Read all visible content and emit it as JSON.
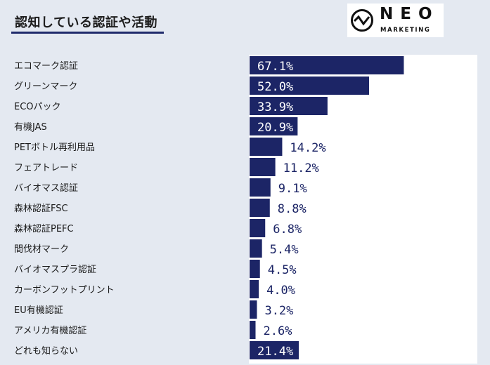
{
  "header": {
    "title": "認知している認証や活動"
  },
  "logo": {
    "brand": "NEO",
    "subtitle": "MARKETING"
  },
  "colors": {
    "bar": "#1c2566",
    "background": "#e4e9f1",
    "plot_background": "#ffffff",
    "label_inside": "#ffffff",
    "label_outside": "#1c2566"
  },
  "chart_data": {
    "type": "bar",
    "orientation": "horizontal",
    "categories": [
      "エコマーク認証",
      "グリーンマーク",
      "ECOパック",
      "有機JAS",
      "PETボトル再利用品",
      "フェアトレード",
      "バイオマス認証",
      "森林認証FSC",
      "森林認証PEFC",
      "間伐材マーク",
      "バイオマスプラ認証",
      "カーボンフットプリント",
      "EU有機認証",
      "アメリカ有機認証",
      "どれも知らない"
    ],
    "values": [
      67.1,
      52.0,
      33.9,
      20.9,
      14.2,
      11.2,
      9.1,
      8.8,
      6.8,
      5.4,
      4.5,
      4.0,
      3.2,
      2.6,
      21.4
    ],
    "labels": [
      "67.1%",
      "52.0%",
      "33.9%",
      "20.9%",
      "14.2%",
      "11.2%",
      "9.1%",
      "8.8%",
      "6.8%",
      "5.4%",
      "4.5%",
      "4.0%",
      "3.2%",
      "2.6%",
      "21.4%"
    ],
    "unit": "%",
    "xlim": [
      0,
      100
    ],
    "grid": false,
    "legend": false
  }
}
